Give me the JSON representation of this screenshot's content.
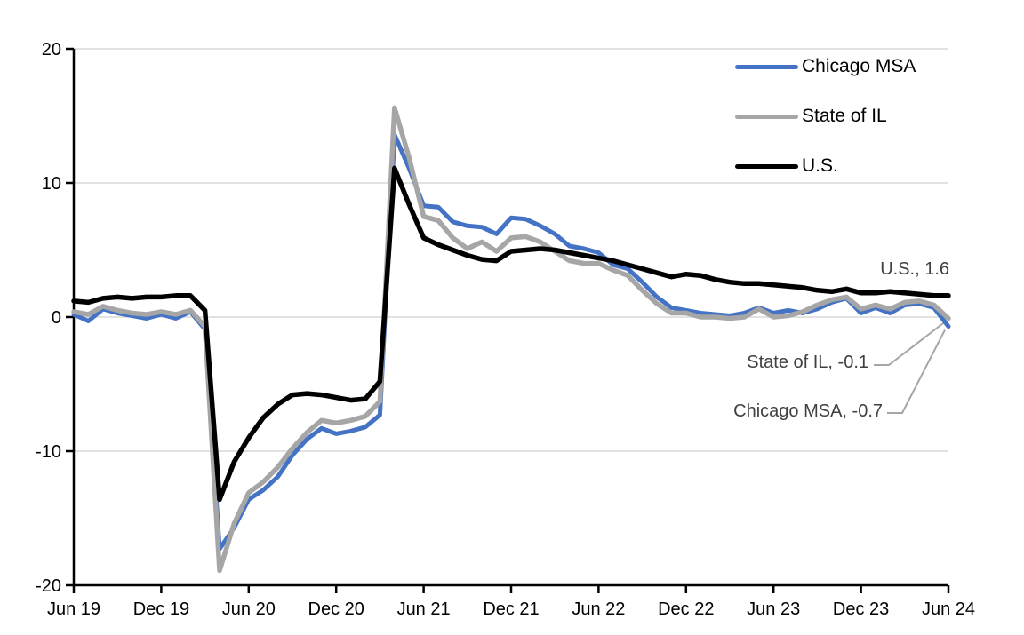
{
  "chart_data": {
    "type": "line",
    "title": "",
    "xlabel": "",
    "ylabel": "",
    "ylim": [
      -20,
      20
    ],
    "grid": "horizontal",
    "legend_position": "top-right",
    "x_labels": [
      "Jun 19",
      "Jul 19",
      "Aug 19",
      "Sep 19",
      "Oct 19",
      "Nov 19",
      "Dec 19",
      "Jan 20",
      "Feb 20",
      "Mar 20",
      "Apr 20",
      "May 20",
      "Jun 20",
      "Jul 20",
      "Aug 20",
      "Sep 20",
      "Oct 20",
      "Nov 20",
      "Dec 20",
      "Jan 21",
      "Feb 21",
      "Mar 21",
      "Apr 21",
      "May 21",
      "Jun 21",
      "Jul 21",
      "Aug 21",
      "Sep 21",
      "Oct 21",
      "Nov 21",
      "Dec 21",
      "Jan 22",
      "Feb 22",
      "Mar 22",
      "Apr 22",
      "May 22",
      "Jun 22",
      "Jul 22",
      "Aug 22",
      "Sep 22",
      "Oct 22",
      "Nov 22",
      "Dec 22",
      "Jan 23",
      "Feb 23",
      "Mar 23",
      "Apr 23",
      "May 23",
      "Jun 23",
      "Jul 23",
      "Aug 23",
      "Sep 23",
      "Oct 23",
      "Nov 23",
      "Dec 23",
      "Jan 24",
      "Feb 24",
      "Mar 24",
      "Apr 24",
      "May 24",
      "Jun 24"
    ],
    "x_tick_indices": [
      0,
      6,
      12,
      18,
      24,
      30,
      36,
      42,
      48,
      54,
      60
    ],
    "x_tick_labels": [
      "Jun 19",
      "Dec 19",
      "Jun 20",
      "Dec 20",
      "Jun 21",
      "Dec 21",
      "Jun 22",
      "Dec 22",
      "Jun 23",
      "Dec 23",
      "Jun 24"
    ],
    "y_tick_values": [
      20,
      10,
      0,
      -10,
      -20
    ],
    "y_tick_labels": [
      "20",
      "10",
      "0",
      "-10",
      "-20"
    ],
    "gridline_values": [
      20,
      10,
      0,
      -10
    ],
    "series": [
      {
        "name": "Chicago MSA",
        "color": "#4472C4",
        "values": [
          0.2,
          -0.3,
          0.6,
          0.3,
          0.1,
          -0.1,
          0.2,
          -0.1,
          0.4,
          -0.9,
          -17.3,
          -15.7,
          -13.6,
          -12.9,
          -11.9,
          -10.3,
          -9.1,
          -8.3,
          -8.7,
          -8.5,
          -8.2,
          -7.3,
          13.6,
          11.1,
          8.3,
          8.2,
          7.1,
          6.8,
          6.7,
          6.2,
          7.4,
          7.3,
          6.8,
          6.2,
          5.3,
          5.1,
          4.8,
          3.9,
          3.6,
          2.6,
          1.5,
          0.7,
          0.5,
          0.3,
          0.2,
          0.1,
          0.3,
          0.7,
          0.3,
          0.5,
          0.3,
          0.6,
          1.1,
          1.4,
          0.3,
          0.7,
          0.3,
          0.9,
          1.0,
          0.7,
          -0.7
        ]
      },
      {
        "name": "State of IL",
        "color": "#A6A6A6",
        "values": [
          0.4,
          0.2,
          0.8,
          0.5,
          0.3,
          0.2,
          0.4,
          0.2,
          0.5,
          -0.7,
          -18.9,
          -15.4,
          -13.1,
          -12.3,
          -11.2,
          -9.8,
          -8.6,
          -7.7,
          -7.9,
          -7.7,
          -7.4,
          -6.3,
          15.6,
          11.9,
          7.5,
          7.2,
          5.9,
          5.1,
          5.6,
          4.9,
          5.9,
          6.0,
          5.6,
          4.9,
          4.2,
          4.0,
          4.0,
          3.5,
          3.1,
          2.0,
          1.0,
          0.3,
          0.3,
          0.0,
          0.0,
          -0.1,
          0.0,
          0.6,
          0.0,
          0.1,
          0.4,
          0.9,
          1.3,
          1.5,
          0.6,
          0.9,
          0.6,
          1.1,
          1.2,
          0.9,
          -0.1
        ]
      },
      {
        "name": "U.S.",
        "color": "#000000",
        "values": [
          1.2,
          1.1,
          1.4,
          1.5,
          1.4,
          1.5,
          1.5,
          1.6,
          1.6,
          0.5,
          -13.6,
          -10.8,
          -9.0,
          -7.5,
          -6.5,
          -5.8,
          -5.7,
          -5.8,
          -6.0,
          -6.2,
          -6.1,
          -4.8,
          11.1,
          8.4,
          5.9,
          5.4,
          5.0,
          4.6,
          4.3,
          4.2,
          4.9,
          5.0,
          5.1,
          5.0,
          4.8,
          4.6,
          4.4,
          4.2,
          3.9,
          3.6,
          3.3,
          3.0,
          3.2,
          3.1,
          2.8,
          2.6,
          2.5,
          2.5,
          2.4,
          2.3,
          2.2,
          2.0,
          1.9,
          2.1,
          1.8,
          1.8,
          1.9,
          1.8,
          1.7,
          1.6,
          1.6
        ]
      }
    ],
    "annotations": [
      {
        "label": "U.S., 1.6",
        "series_index": 2,
        "value": 1.6,
        "has_leader": false
      },
      {
        "label": "State of IL, -0.1",
        "series_index": 1,
        "value": -0.1,
        "has_leader": true
      },
      {
        "label": "Chicago MSA, -0.7",
        "series_index": 0,
        "value": -0.7,
        "has_leader": true
      }
    ],
    "colors": {
      "gridline": "#D9D9D9",
      "axis": "#000000",
      "tick_label": "#000000",
      "annotation_text": "#404040",
      "leader_line": "#A6A6A6"
    }
  }
}
